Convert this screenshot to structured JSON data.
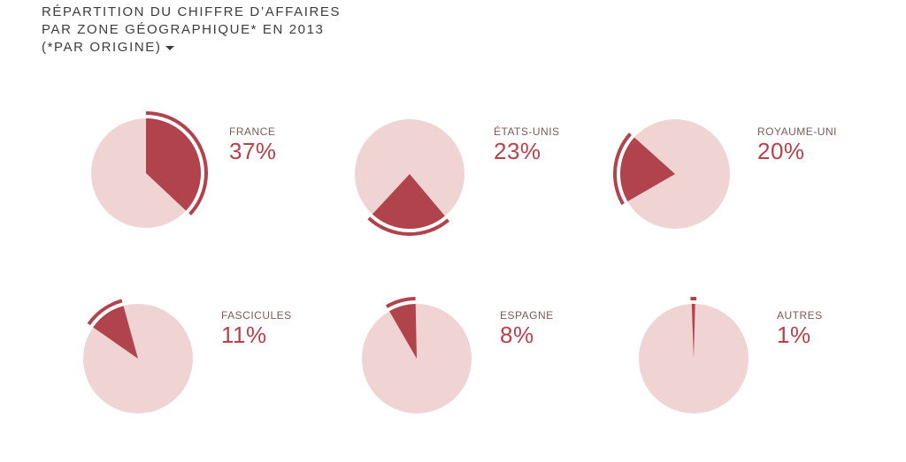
{
  "title": {
    "line1": "RÉPARTITION DU CHIFFRE D’AFFAIRES",
    "line2": "PAR ZONE GÉOGRAPHIQUE* EN 2013",
    "line3": "(*PAR ORIGINE)",
    "dropdown_icon": "caret-down-icon"
  },
  "colors": {
    "slice": "#b0434b",
    "rest": "#f0d4d4",
    "ring": "#b0434b",
    "label": "#7c5a56",
    "value": "#b8414b",
    "title": "#3c3c3c"
  },
  "chart_data": {
    "type": "pie",
    "series": [
      {
        "label": "FRANCE",
        "percent_label": "37%",
        "value": 37
      },
      {
        "label": "ÉTATS-UNIS",
        "percent_label": "23%",
        "value": 23
      },
      {
        "label": "ROYAUME-UNI",
        "percent_label": "20%",
        "value": 20
      },
      {
        "label": "FASCICULES",
        "percent_label": "11%",
        "value": 11
      },
      {
        "label": "ESPAGNE",
        "percent_label": "8%",
        "value": 8
      },
      {
        "label": "AUTRES",
        "percent_label": "1%",
        "value": 1
      }
    ]
  }
}
